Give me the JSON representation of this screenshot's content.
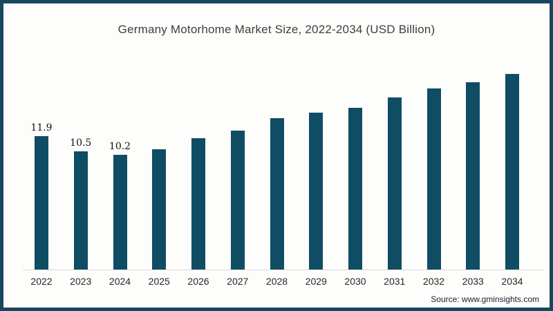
{
  "chart_data": {
    "type": "bar",
    "title": "Germany Motorhome Market Size, 2022-2034 (USD Billion)",
    "categories": [
      "2022",
      "2023",
      "2024",
      "2025",
      "2026",
      "2027",
      "2028",
      "2029",
      "2030",
      "2031",
      "2032",
      "2033",
      "2034"
    ],
    "values": [
      11.9,
      10.5,
      10.2,
      10.7,
      11.7,
      12.4,
      13.5,
      14.0,
      14.4,
      15.3,
      16.1,
      16.7,
      17.4
    ],
    "data_labels": [
      "11.9",
      "10.5",
      "10.2",
      "",
      "",
      "",
      "",
      "",
      "",
      "",
      "",
      "",
      ""
    ],
    "xlabel": "",
    "ylabel": "",
    "ylim": [
      0,
      20
    ],
    "grid": false,
    "legend": "none",
    "bar_color": "#0e4d63",
    "axis_line_color": "#d8d8d8"
  },
  "source": "Source: www.gminsights.com",
  "colors": {
    "frame_border": "#17465e",
    "background": "#fdfdfb",
    "title_text": "#3d3d3d",
    "tick_text": "#262626"
  }
}
